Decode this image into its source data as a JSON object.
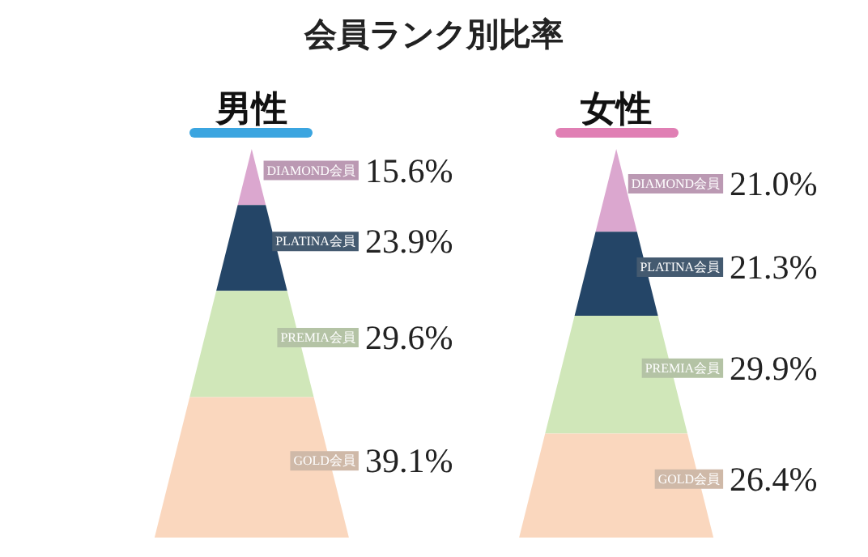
{
  "chart_data": {
    "type": "other",
    "title": "会員ランク別比率",
    "categories": [
      "DIAMOND会員",
      "PLATINA会員",
      "PREMIA会員",
      "GOLD会員"
    ],
    "colors": [
      "#dba7cf",
      "#244567",
      "#d0e7b9",
      "#fad7be"
    ],
    "series": [
      {
        "name": "男性",
        "values": [
          15.6,
          23.9,
          29.6,
          39.1
        ],
        "value_labels": [
          "15.6%",
          "23.9%",
          "29.6%",
          "39.1%"
        ]
      },
      {
        "name": "女性",
        "values": [
          21.0,
          21.3,
          29.9,
          26.4
        ],
        "value_labels": [
          "21.0%",
          "21.3%",
          "29.9%",
          "26.4%"
        ]
      }
    ],
    "legend": false
  }
}
